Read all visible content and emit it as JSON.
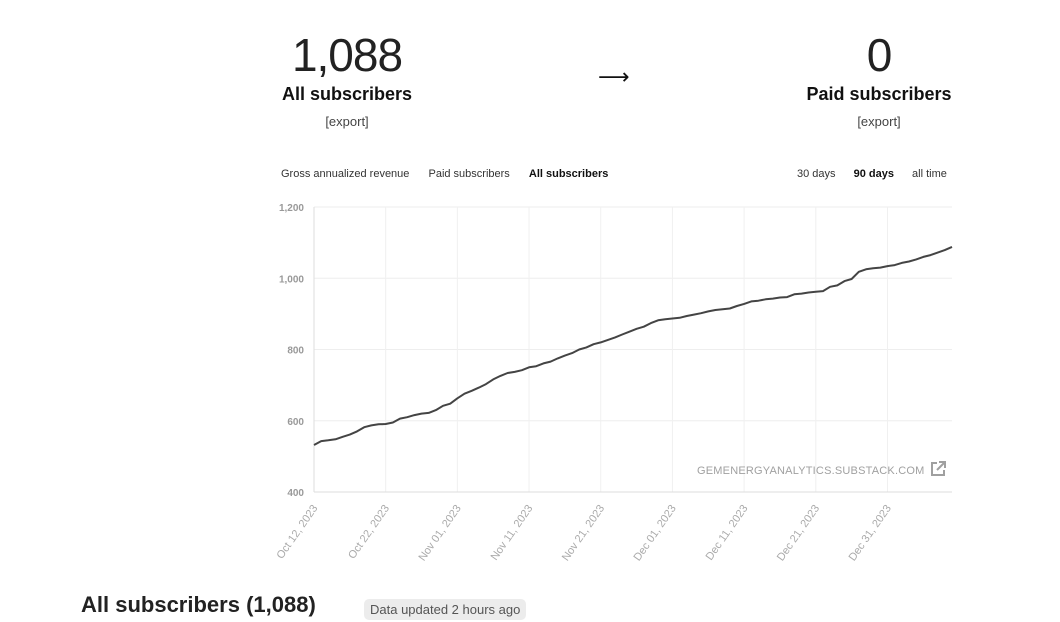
{
  "stats": {
    "all": {
      "value": "1,088",
      "label": "All subscribers",
      "export": "[export]"
    },
    "arrow": "⟶",
    "paid": {
      "value": "0",
      "label": "Paid subscribers",
      "export": "[export]"
    }
  },
  "metric_tabs": [
    {
      "label": "Gross annualized revenue",
      "active": false
    },
    {
      "label": "Paid subscribers",
      "active": false
    },
    {
      "label": "All subscribers",
      "active": true
    }
  ],
  "range_tabs": [
    {
      "label": "30 days",
      "active": false
    },
    {
      "label": "90 days",
      "active": true
    },
    {
      "label": "all time",
      "active": false
    }
  ],
  "watermark": {
    "text": "GEMENERGYANALYTICS.SUBSTACK.COM",
    "icon": "external-link-icon"
  },
  "chart_data": {
    "type": "line",
    "title": "",
    "xlabel": "",
    "ylabel": "",
    "ylim": [
      400,
      1200
    ],
    "yticks": [
      "400",
      "600",
      "800",
      "1,000",
      "1,200"
    ],
    "xtick_labels": [
      "Oct 12, 2023",
      "Oct 22, 2023",
      "Nov 01, 2023",
      "Nov 11, 2023",
      "Nov 21, 2023",
      "Dec 01, 2023",
      "Dec 11, 2023",
      "Dec 21, 2023",
      "Dec 31, 2023"
    ],
    "x_start": "2023-10-12",
    "grid": true,
    "line_color": "#444444",
    "series": [
      {
        "values": [
          532,
          543,
          545,
          548,
          555,
          561,
          570,
          582,
          587,
          590,
          591,
          595,
          606,
          610,
          616,
          620,
          622,
          630,
          642,
          648,
          663,
          676,
          684,
          693,
          703,
          716,
          726,
          734,
          737,
          742,
          750,
          753,
          761,
          766,
          775,
          783,
          790,
          800,
          806,
          815,
          820,
          827,
          834,
          842,
          850,
          858,
          864,
          874,
          882,
          885,
          887,
          889,
          894,
          898,
          902,
          907,
          911,
          913,
          915,
          922,
          928,
          935,
          937,
          941,
          943,
          946,
          947,
          955,
          957,
          960,
          962,
          964,
          976,
          980,
          992,
          998,
          1018,
          1025,
          1028,
          1030,
          1034,
          1037,
          1043,
          1047,
          1053,
          1060,
          1065,
          1072,
          1079,
          1088
        ]
      }
    ]
  },
  "footer": {
    "title": "All subscribers (1,088)",
    "badge": "Data updated 2 hours ago"
  }
}
